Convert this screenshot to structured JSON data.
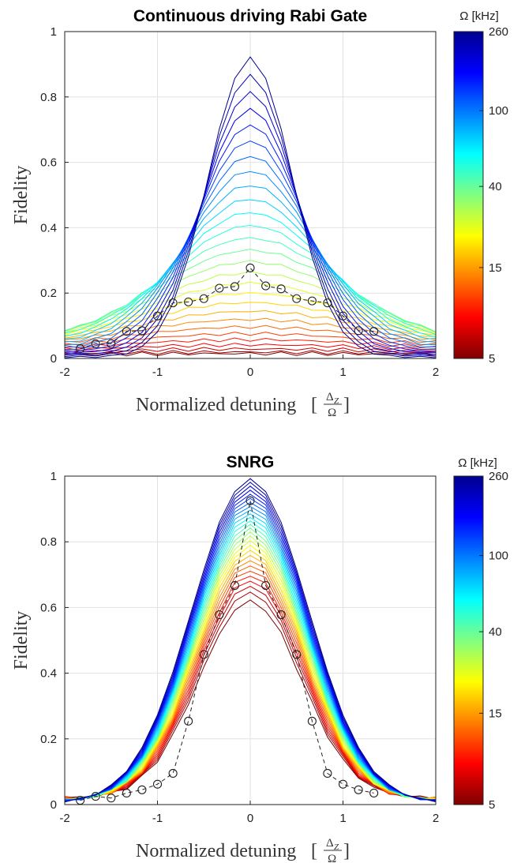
{
  "colors": {
    "axis": "#222222",
    "grid": "#e2e2e2",
    "circle": "#222222",
    "colormap": [
      "#7f0000",
      "#ff0000",
      "#ff7f00",
      "#ffff00",
      "#80ff80",
      "#00ffff",
      "#0080ff",
      "#0000ff",
      "#00008f"
    ]
  },
  "chart_data": [
    {
      "type": "line",
      "title": "Continuous driving Rabi Gate",
      "xlabel": "Normalized detuning",
      "xlabel_fraction_num": "Δ",
      "xlabel_fraction_sub": "Z",
      "xlabel_fraction_den": "Ω",
      "ylabel": "Fidelity",
      "xlim": [
        -2,
        2
      ],
      "ylim": [
        0,
        1
      ],
      "xticks": [
        "-2",
        "-1",
        "0",
        "1",
        "2"
      ],
      "yticks": [
        "0",
        "0.2",
        "0.4",
        "0.6",
        "0.8",
        "1"
      ],
      "grid": true,
      "colorbar": {
        "label": "Ω [kHz]",
        "ticks": [
          "260",
          "100",
          "40",
          "15",
          "5"
        ],
        "scale": "log"
      },
      "x": [
        -2.0,
        -1.833,
        -1.667,
        -1.5,
        -1.333,
        -1.167,
        -1.0,
        -0.833,
        -0.667,
        -0.5,
        -0.333,
        -0.167,
        0.0,
        0.167,
        0.333,
        0.5,
        0.667,
        0.833,
        1.0,
        1.167,
        1.333,
        1.5,
        1.667,
        1.833,
        2.0
      ],
      "family": {
        "description_omitted": true,
        "count": 28,
        "peak_min": 0.015,
        "peak_max": 0.92,
        "width_min": 0.35,
        "width_max": 1.6,
        "floor_low": 0.01,
        "floor_high": 0.05
      },
      "circles": {
        "x": [
          -1.833,
          -1.667,
          -1.5,
          -1.333,
          -1.167,
          -1.0,
          -0.833,
          -0.667,
          -0.5,
          -0.333,
          -0.167,
          0.0,
          0.167,
          0.333,
          0.5,
          0.667,
          0.833,
          1.0,
          1.167,
          1.333
        ],
        "y": [
          0.03,
          0.045,
          0.045,
          0.083,
          0.085,
          0.13,
          0.17,
          0.173,
          0.183,
          0.215,
          0.22,
          0.277,
          0.222,
          0.213,
          0.183,
          0.176,
          0.17,
          0.13,
          0.085,
          0.083
        ]
      }
    },
    {
      "type": "line",
      "title": "SNRG",
      "xlabel": "Normalized detuning",
      "xlabel_fraction_num": "Δ",
      "xlabel_fraction_sub": "Z",
      "xlabel_fraction_den": "Ω",
      "ylabel": "Fidelity",
      "xlim": [
        -2,
        2
      ],
      "ylim": [
        0,
        1
      ],
      "xticks": [
        "-2",
        "-1",
        "0",
        "1",
        "2"
      ],
      "yticks": [
        "0",
        "0.2",
        "0.4",
        "0.6",
        "0.8",
        "1"
      ],
      "grid": true,
      "colorbar": {
        "label": "Ω [kHz]",
        "ticks": [
          "260",
          "100",
          "40",
          "15",
          "5"
        ],
        "scale": "log"
      },
      "x": [
        -2.0,
        -1.833,
        -1.667,
        -1.5,
        -1.333,
        -1.167,
        -1.0,
        -0.833,
        -0.667,
        -0.5,
        -0.333,
        -0.167,
        0.0,
        0.167,
        0.333,
        0.5,
        0.667,
        0.833,
        1.0,
        1.167,
        1.333,
        1.5,
        1.667,
        1.833,
        2.0
      ],
      "family": {
        "count": 28,
        "peak_min": 0.62,
        "peak_max": 0.99,
        "width_min": 0.55,
        "width_max": 0.62,
        "floor_low": 0.005,
        "floor_high": 0.02
      },
      "circles": {
        "x": [
          -1.833,
          -1.667,
          -1.5,
          -1.333,
          -1.167,
          -1.0,
          -0.833,
          -0.667,
          -0.5,
          -0.333,
          -0.167,
          0.0,
          0.167,
          0.333,
          0.5,
          0.667,
          0.833,
          1.0,
          1.167,
          1.333
        ],
        "y": [
          0.013,
          0.025,
          0.02,
          0.035,
          0.045,
          0.062,
          0.095,
          0.254,
          0.457,
          0.578,
          0.667,
          0.925,
          0.667,
          0.578,
          0.457,
          0.254,
          0.095,
          0.062,
          0.045,
          0.035
        ]
      }
    }
  ]
}
